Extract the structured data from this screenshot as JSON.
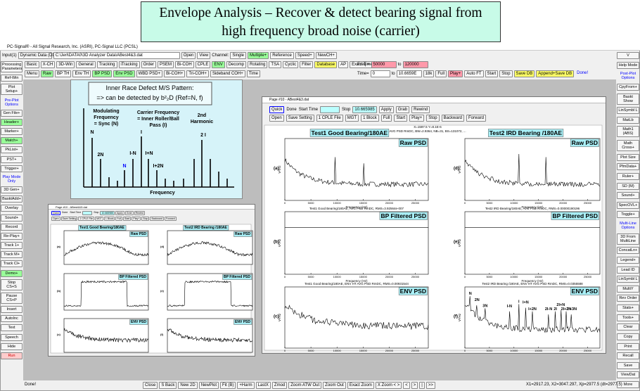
{
  "banner": {
    "line1": "Envelope Analysis – Recover & detect bearing signal from",
    "line2": "high frequency broad noise (carrier)"
  },
  "app_title": "PC-Signal® - All Signal Research, Inc. (ASRI), PC-Signal LLC (PCSL)",
  "toolbar1": {
    "items": [
      "Input(1)",
      "Dynamic Data (DD)",
      "C:\\Jeri\\DATA0\\3D Analyzer Data\\ABest4&3.dat",
      "Open",
      "View",
      "Channel:",
      "Single",
      "Multiple+",
      "Reference",
      "Speed+",
      "NewCH+"
    ]
  },
  "toolbar2": {
    "items": [
      "Basic",
      "X-CH",
      "3D-Win",
      "General",
      "Tracking",
      "iTracking",
      "Order",
      "PSEM",
      "Bi-COH",
      "CPLE",
      "ENV",
      "Decomp",
      "Rotating",
      "TSA",
      "Cyclic",
      "Filter",
      "Database",
      "AP",
      "Exact Time",
      "More"
    ],
    "right": [
      "Freq =",
      "50000",
      "to",
      "120000"
    ]
  },
  "toolbar3": {
    "items": [
      "Menu",
      "Raw",
      "BP TH",
      "Env TH",
      "BP PSD",
      "Env PSD",
      "WBD PSD+",
      "Bi-COH+",
      "Tri-COH+",
      "Sideband COH+",
      "Time"
    ],
    "right": [
      "Time=",
      "0",
      "to",
      "10.6659E",
      "18k",
      "Full",
      "Play+",
      "Auto FT",
      "Start",
      "Stop",
      "Save DB",
      "Append+Save DB",
      "Done!"
    ]
  },
  "left_panel": [
    "Processing Parameters",
    "Ref-Win",
    "Plot Setup+",
    "Pre-Plot Options",
    "Gen File+",
    "Header+",
    "Marker+",
    "Match+",
    "PkList+",
    "PST+",
    "Trigger+",
    "Play Mode Only",
    "3D Gen+",
    "BasktAdd+",
    "Overlay",
    "Sound+",
    "Record",
    "Re-Play+",
    "Track 1+",
    "Track M+",
    "Track Cl+",
    "Demo+",
    "Stop CS+S",
    "Pause CS+P",
    "Insert",
    "AutoInc",
    "Text",
    "Speech",
    "Hide",
    "Run"
  ],
  "right_panel": [
    "V",
    "Help Mode",
    "Post-Plot Options",
    "CpyFrom+",
    "Baskt Show",
    "LinSymbl L",
    "MatLb",
    "Math1 (ABS)",
    "Math Cross+",
    "Plot Size",
    "PfmData+",
    "Ruler+",
    "SD (M)",
    "Sound+",
    "SpecOVL+",
    "Toggle+",
    "Multi-Line Options",
    "3D From MultiLine",
    "ConcatLn+",
    "Legend+",
    "Lead ID",
    "LinSymbl L",
    "MultiY",
    "Rev Order",
    "Stats+",
    "Tools+",
    "Clear",
    "Copy",
    "Print",
    "Recall",
    "Save",
    "ViewDat",
    "More"
  ],
  "status_bar": {
    "message": "Done!",
    "buttons": [
      "Close",
      "S Back",
      "New 2D",
      "NewPlot",
      "Fit (B)",
      "+Harm",
      "LastX",
      "Zmod",
      "Zoom ATW Out",
      "Zoom Out",
      "Exact Zoom",
      "X Zoom < >",
      "<",
      ">",
      "|",
      ">>"
    ],
    "readout": "X1=2917.23, X2=3047.297, Xp=2977.5 (dt=2977.5)"
  },
  "diagram": {
    "heading": "Inner Race Defect M/S Pattern:",
    "detect": "=> can be detected by  b²₂D (Ref=N, f)",
    "modulating": [
      "Modulating",
      "Frequency",
      "= Sync (N)"
    ],
    "carrier": [
      "Carrier Frequency",
      "= Inner Roller/Ball",
      "Pass (I)"
    ],
    "harmonic": [
      "2nd",
      "Harmonic"
    ],
    "peak_labels": [
      "N",
      "2N",
      "N",
      "I-N",
      "I",
      "I+N",
      "I+2N",
      "2 I"
    ],
    "x_label": "Frequency"
  },
  "page_window": {
    "title": "Page #10 - ABest4&3.dat",
    "controls1": [
      "Quick",
      "Done",
      "Start Time",
      "",
      "Stop",
      "10.665985",
      "Apply",
      "Grab",
      "Rewind"
    ],
    "controls2": [
      "Open",
      "Save Setting",
      "1 CPLE File",
      "MGT",
      "1 Block",
      "Full",
      "Start",
      "Play+",
      "Stop",
      "Backward",
      "Forward"
    ],
    "info": [
      "X=1597.5  Y=8.1E-6",
      "AVG PSD RmDC, BW=2.9364, NB=31, BS=131072, ..."
    ],
    "col_titles": [
      "Test1 Good Bearing/180AE",
      "Test2 IRD Bearing /180AE"
    ],
    "panels": [
      {
        "letter": "(a)",
        "title": "Raw PSD"
      },
      {
        "letter": "(b)",
        "title": "BP Filtered PSD",
        "caption": "Test1 Good Bearing/180AE, AVG PSD RmDC, RMS=3.92564e-007"
      },
      {
        "letter": "(c)",
        "title": "ENV PSD",
        "caption": "Test1 Good Bearing/180AE, ENV HT AVG PSD RmDC, RMS=0.00931544"
      },
      {
        "letter": "(d)",
        "title": "Raw PSD"
      },
      {
        "letter": "(e)",
        "title": "BP Filtered PSD",
        "caption": "Test2 IRD Bearing/180AE, AVG PSD RmDC, RMS=0.00000190196"
      },
      {
        "letter": "(f)",
        "title": "ENV PSD",
        "caption": "Test2 IRD Bearing /180AE, ENV HT AVG PSD RmDC, RMS=0.0355588",
        "annotations": [
          "N",
          "2N",
          "3N",
          "I-N",
          "I",
          "I+N",
          "I+2N",
          "2I-N",
          "2I",
          "2I+N",
          "2I+2N",
          "2I+3N"
        ]
      }
    ],
    "xlim": [
      0,
      27500
    ],
    "xticks": [
      0,
      5000,
      10000,
      15000,
      20000,
      25000
    ],
    "x_label": "Frequency (Hz)",
    "y_label": "V²/Hz"
  }
}
